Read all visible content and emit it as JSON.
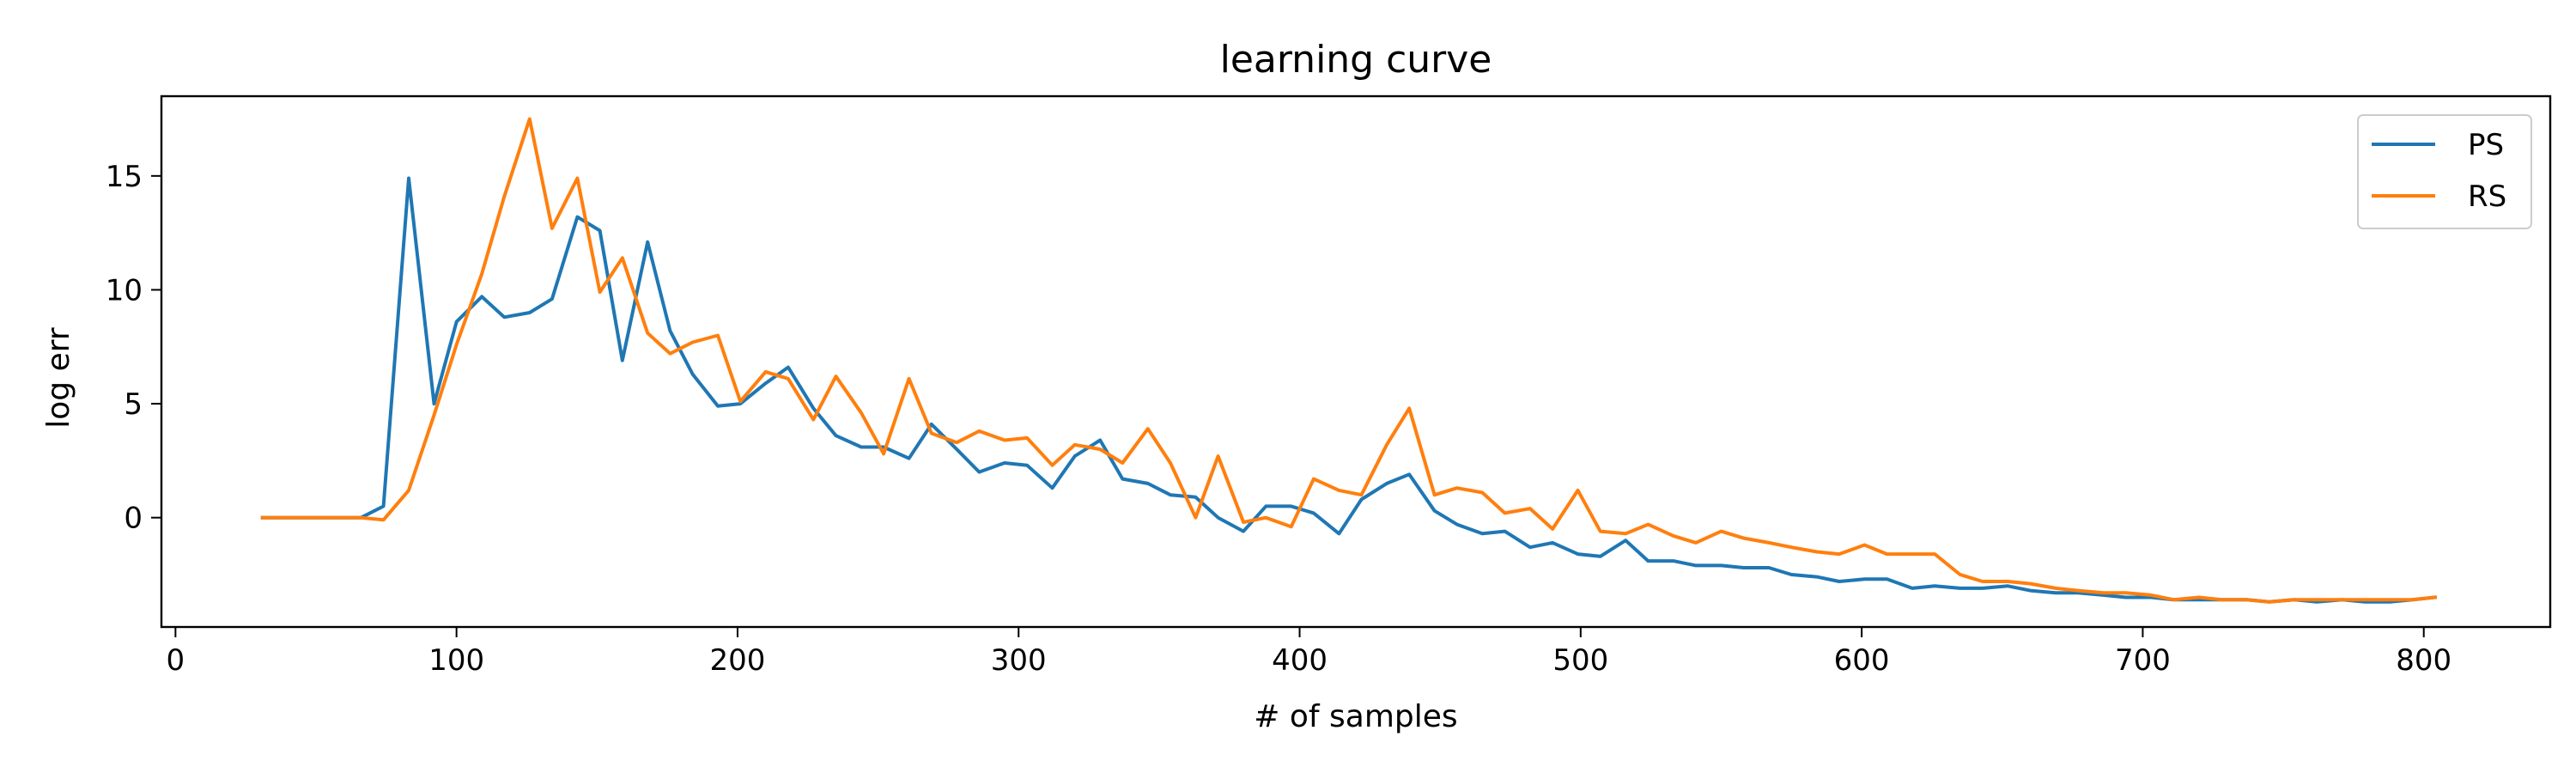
{
  "chart_data": {
    "type": "line",
    "title": "learning curve",
    "xlabel": "# of samples",
    "ylabel": "log err",
    "xlim": [
      -5,
      845
    ],
    "ylim": [
      -4.8,
      18.5
    ],
    "xticks": [
      0,
      100,
      200,
      300,
      400,
      500,
      600,
      700,
      800
    ],
    "yticks": [
      0,
      5,
      10,
      15
    ],
    "grid": false,
    "legend_position": "top-right",
    "series": [
      {
        "name": "PS",
        "color": "#1f77b4",
        "x": [
          31,
          40,
          50,
          57,
          66,
          74,
          83,
          92,
          100,
          109,
          117,
          126,
          134,
          143,
          151,
          159,
          168,
          176,
          184,
          193,
          201,
          210,
          218,
          227,
          235,
          244,
          252,
          261,
          269,
          278,
          286,
          295,
          303,
          312,
          320,
          329,
          337,
          346,
          354,
          363,
          371,
          380,
          388,
          397,
          405,
          414,
          422,
          431,
          439,
          448,
          456,
          465,
          473,
          482,
          490,
          499,
          507,
          516,
          524,
          533,
          541,
          550,
          558,
          567,
          575,
          584,
          592,
          601,
          609,
          618,
          626,
          635,
          643,
          652,
          660,
          669,
          677,
          686,
          694,
          703,
          711,
          720,
          728,
          737,
          745,
          754,
          762,
          771,
          779,
          788,
          796,
          804
        ],
        "y": [
          0,
          0,
          0,
          0,
          0,
          0.5,
          14.9,
          5.0,
          8.6,
          9.7,
          8.8,
          9.0,
          9.6,
          13.2,
          12.6,
          6.9,
          12.1,
          8.2,
          6.3,
          4.9,
          5.0,
          5.9,
          6.6,
          4.8,
          3.6,
          3.1,
          3.1,
          2.6,
          4.1,
          3.0,
          2.0,
          2.4,
          2.3,
          1.3,
          2.7,
          3.4,
          1.7,
          1.5,
          1.0,
          0.9,
          0.0,
          -0.6,
          0.5,
          0.5,
          0.2,
          -0.7,
          0.8,
          1.5,
          1.9,
          0.3,
          -0.3,
          -0.7,
          -0.6,
          -1.3,
          -1.1,
          -1.6,
          -1.7,
          -1.0,
          -1.9,
          -1.9,
          -2.1,
          -2.1,
          -2.2,
          -2.2,
          -2.5,
          -2.6,
          -2.8,
          -2.7,
          -2.7,
          -3.1,
          -3.0,
          -3.1,
          -3.1,
          -3.0,
          -3.2,
          -3.3,
          -3.3,
          -3.4,
          -3.5,
          -3.5,
          -3.6,
          -3.6,
          -3.6,
          -3.6,
          -3.7,
          -3.6,
          -3.7,
          -3.6,
          -3.7,
          -3.7,
          -3.6,
          -3.5
        ]
      },
      {
        "name": "RS",
        "color": "#ff7f0e",
        "x": [
          31,
          40,
          50,
          57,
          66,
          74,
          83,
          92,
          100,
          109,
          117,
          126,
          134,
          143,
          151,
          159,
          168,
          176,
          184,
          193,
          201,
          210,
          218,
          227,
          235,
          244,
          252,
          261,
          269,
          278,
          286,
          295,
          303,
          312,
          320,
          329,
          337,
          346,
          354,
          363,
          371,
          380,
          388,
          397,
          405,
          414,
          422,
          431,
          439,
          448,
          456,
          465,
          473,
          482,
          490,
          499,
          507,
          516,
          524,
          533,
          541,
          550,
          558,
          567,
          575,
          584,
          592,
          601,
          609,
          618,
          626,
          635,
          643,
          652,
          660,
          669,
          677,
          686,
          694,
          703,
          711,
          720,
          728,
          737,
          745,
          754,
          762,
          771,
          779,
          788,
          796,
          804
        ],
        "y": [
          0,
          0,
          0,
          0,
          0,
          -0.1,
          1.2,
          4.5,
          7.6,
          10.7,
          14.1,
          17.5,
          12.7,
          14.9,
          9.9,
          11.4,
          8.1,
          7.2,
          7.7,
          8.0,
          5.1,
          6.4,
          6.1,
          4.3,
          6.2,
          4.6,
          2.8,
          6.1,
          3.7,
          3.3,
          3.8,
          3.4,
          3.5,
          2.3,
          3.2,
          3.0,
          2.4,
          3.9,
          2.4,
          0.0,
          2.7,
          -0.2,
          0.0,
          -0.4,
          1.7,
          1.2,
          1.0,
          3.2,
          4.8,
          1.0,
          1.3,
          1.1,
          0.2,
          0.4,
          -0.5,
          1.2,
          -0.6,
          -0.7,
          -0.3,
          -0.8,
          -1.1,
          -0.6,
          -0.9,
          -1.1,
          -1.3,
          -1.5,
          -1.6,
          -1.2,
          -1.6,
          -1.6,
          -1.6,
          -2.5,
          -2.8,
          -2.8,
          -2.9,
          -3.1,
          -3.2,
          -3.3,
          -3.3,
          -3.4,
          -3.6,
          -3.5,
          -3.6,
          -3.6,
          -3.7,
          -3.6,
          -3.6,
          -3.6,
          -3.6,
          -3.6,
          -3.6,
          -3.5
        ]
      }
    ]
  }
}
